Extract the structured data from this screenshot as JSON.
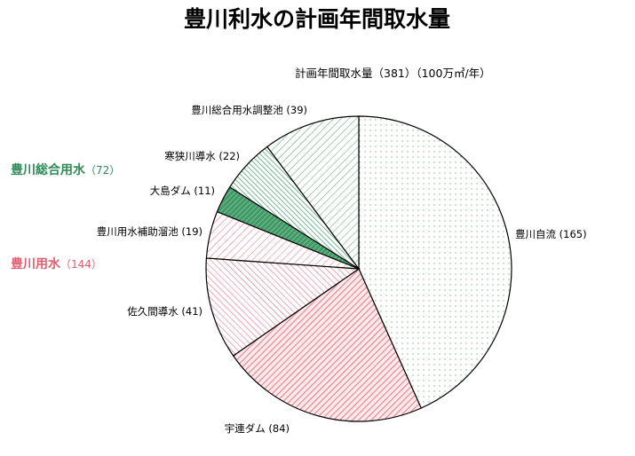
{
  "chart_data": {
    "type": "pie",
    "title": "豊川利水の計画年間取水量",
    "subtitle": "計画年間取水量（381）（100万㎥/年）",
    "total": 381,
    "categories": [
      "豊川自流",
      "宇連ダム",
      "佐久間導水",
      "豊川用水補助溜池",
      "大島ダム",
      "寒狭川導水",
      "豊川総合用水調整池"
    ],
    "values": [
      165,
      84,
      41,
      19,
      11,
      22,
      39
    ],
    "slice_labels": [
      "豊川自流 (165)",
      "宇連ダム (84)",
      "佐久間導水 (41)",
      "豊川用水補助溜池 (19)",
      "大島ダム (11)",
      "寒狭川導水 (22)",
      "豊川総合用水調整池 (39)"
    ],
    "slice_colors": [
      "#a8cba8",
      "#e88890",
      "#e88890",
      "#e88890",
      "#2e8b57",
      "#2e8b57",
      "#2e8b57"
    ],
    "groups": [
      {
        "name": "豊川総合用水",
        "value_text": "（72）",
        "value": 72,
        "color": "#2e8b57"
      },
      {
        "name": "豊川用水",
        "value_text": "（144）",
        "value": 144,
        "color": "#e06070"
      }
    ]
  }
}
